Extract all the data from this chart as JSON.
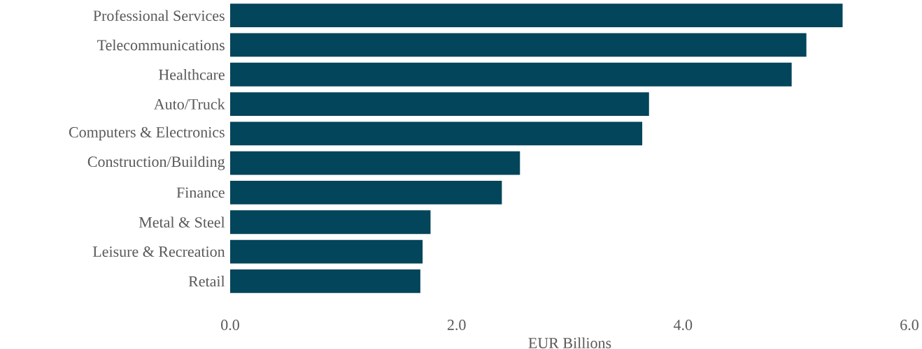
{
  "chart_data": {
    "type": "bar",
    "orientation": "horizontal",
    "xlabel": "EUR Billions",
    "categories": [
      "Professional Services",
      "Telecommunications",
      "Healthcare",
      "Auto/Truck",
      "Computers & Electronics",
      "Construction/Building",
      "Finance",
      "Metal & Steel",
      "Leisure & Recreation",
      "Retail"
    ],
    "values": [
      5.41,
      5.09,
      4.96,
      3.7,
      3.64,
      2.56,
      2.4,
      1.77,
      1.7,
      1.68
    ],
    "color": "#03455a",
    "xlim": [
      0,
      6
    ],
    "xticks": [
      {
        "value": 0,
        "label": "0.0"
      },
      {
        "value": 2,
        "label": "2.0"
      },
      {
        "value": 4,
        "label": "4.0"
      },
      {
        "value": 6,
        "label": "6.0"
      }
    ],
    "grid": false
  }
}
